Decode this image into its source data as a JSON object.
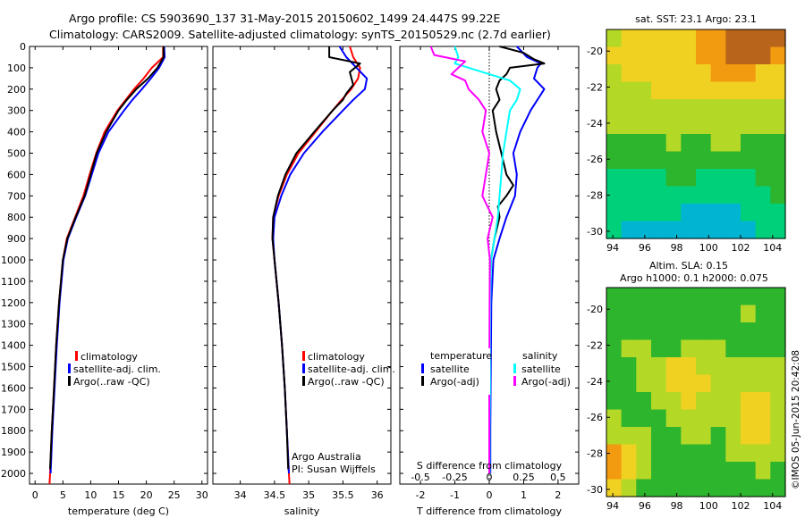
{
  "title_line1": "Argo profile: CS 5903690_137 31-May-2015 20150602_1499 24.447S 99.22E",
  "title_line2": "Climatology: CARS2009. Satellite-adjusted climatology: synTS_20150529.nc (2.7d earlier)",
  "credit_line1": "Argo Australia",
  "credit_line2": "PI: Susan Wijffels",
  "timestamp": "©IMOS 05-Jun-2015 20:42:08",
  "colors": {
    "climatology": "#ff0000",
    "satellite": "#0000ff",
    "argo": "#000000",
    "sal_satellite": "#00ffff",
    "sal_argo": "#ff00ff"
  },
  "chart_data": [
    {
      "type": "line",
      "xlabel": "temperature (deg C)",
      "xlim": [
        -1,
        31
      ],
      "ylim": [
        2050,
        0
      ],
      "xticks": [
        0,
        5,
        10,
        15,
        20,
        25,
        30
      ],
      "yticks": [
        0,
        100,
        200,
        300,
        400,
        500,
        600,
        700,
        800,
        900,
        1000,
        1100,
        1200,
        1300,
        1400,
        1500,
        1600,
        1700,
        1800,
        1900,
        2000
      ],
      "legend": [
        "climatology",
        "satellite-adj. clim.",
        "Argo(..raw -QC)"
      ],
      "series": [
        {
          "name": "climatology",
          "color": "#ff0000",
          "depth": [
            0,
            50,
            100,
            150,
            200,
            250,
            300,
            400,
            500,
            600,
            700,
            800,
            900,
            1000,
            1200,
            1400,
            1600,
            1800,
            2000,
            2050
          ],
          "values": [
            23.0,
            23.0,
            21.0,
            19.5,
            17.8,
            16.3,
            14.8,
            12.5,
            11.0,
            9.8,
            8.7,
            7.2,
            5.7,
            5.0,
            4.3,
            3.8,
            3.4,
            3.0,
            2.7,
            2.6
          ]
        },
        {
          "name": "satellite-adj. clim.",
          "color": "#0000ff",
          "depth": [
            0,
            50,
            100,
            150,
            200,
            250,
            300,
            400,
            500,
            600,
            700,
            800,
            900,
            1000,
            1200,
            1400,
            1600,
            1800,
            2000
          ],
          "values": [
            23.2,
            23.3,
            22.3,
            20.8,
            19.2,
            17.5,
            16.0,
            13.2,
            11.4,
            10.2,
            9.0,
            7.4,
            5.9,
            5.1,
            4.4,
            3.9,
            3.5,
            3.1,
            2.8
          ]
        },
        {
          "name": "Argo(..raw -QC)",
          "color": "#000000",
          "depth": [
            0,
            50,
            100,
            150,
            200,
            250,
            300,
            400,
            500,
            600,
            700,
            800,
            900,
            1000,
            1200,
            1400,
            1600,
            1800,
            1980
          ],
          "values": [
            23.1,
            23.1,
            22.0,
            20.3,
            18.2,
            16.5,
            15.0,
            12.8,
            11.1,
            10.0,
            8.9,
            7.3,
            5.8,
            5.0,
            4.3,
            3.8,
            3.4,
            3.0,
            2.7
          ]
        }
      ]
    },
    {
      "type": "line",
      "xlabel": "salinity",
      "xlim": [
        33.6,
        36.2
      ],
      "ylim": [
        2050,
        0
      ],
      "xticks": [
        34,
        34.5,
        35,
        35.5,
        36
      ],
      "legend": [
        "climatology",
        "satellite-adj. clim.",
        "Argo(..raw -QC)"
      ],
      "series": [
        {
          "name": "climatology",
          "color": "#ff0000",
          "depth": [
            0,
            50,
            100,
            150,
            200,
            250,
            300,
            400,
            500,
            600,
            700,
            800,
            900,
            1000,
            1200,
            1400,
            1600,
            1800,
            2000,
            2050
          ],
          "values": [
            35.6,
            35.65,
            35.75,
            35.72,
            35.62,
            35.48,
            35.35,
            35.1,
            34.85,
            34.68,
            34.56,
            34.48,
            34.47,
            34.5,
            34.56,
            34.61,
            34.65,
            34.68,
            34.71,
            34.72
          ]
        },
        {
          "name": "satellite-adj. clim.",
          "color": "#0000ff",
          "depth": [
            0,
            50,
            100,
            150,
            200,
            250,
            300,
            400,
            500,
            600,
            700,
            800,
            900,
            1000,
            1200,
            1400,
            1600,
            1800,
            2000
          ],
          "values": [
            35.45,
            35.55,
            35.7,
            35.85,
            35.82,
            35.65,
            35.5,
            35.2,
            34.93,
            34.73,
            34.6,
            34.5,
            34.48,
            34.5,
            34.56,
            34.61,
            34.65,
            34.68,
            34.71
          ]
        },
        {
          "name": "Argo(..raw -QC)",
          "color": "#000000",
          "depth": [
            0,
            50,
            80,
            120,
            180,
            220,
            250,
            300,
            400,
            500,
            600,
            700,
            800,
            900,
            1000,
            1200,
            1400,
            1600,
            1800,
            1980
          ],
          "values": [
            35.3,
            35.3,
            35.75,
            35.6,
            35.65,
            35.55,
            35.5,
            35.35,
            35.08,
            34.82,
            34.66,
            34.55,
            34.48,
            34.47,
            34.5,
            34.56,
            34.61,
            34.65,
            34.68,
            34.7
          ]
        }
      ]
    },
    {
      "type": "line",
      "xlabel": "T difference from climatology",
      "xlabel_top": "S difference from climatology",
      "xlim": [
        -2.6,
        2.6
      ],
      "ylim": [
        2050,
        0
      ],
      "xticks": [
        -2,
        -1,
        0,
        1,
        2
      ],
      "xticks_top": [
        "-0.5",
        "-0.25",
        "0",
        "0.25",
        "0.5"
      ],
      "legend_headers": [
        "temperature",
        "salinity"
      ],
      "legend": [
        "satellite",
        "Argo(-adj)",
        "satellite",
        "Argo(-adj)"
      ],
      "series": [
        {
          "name": "satellite",
          "color": "#0000ff",
          "depth": [
            0,
            50,
            80,
            100,
            150,
            200,
            250,
            300,
            400,
            500,
            600,
            700,
            800,
            900,
            1000,
            1200,
            1400,
            1600,
            1800,
            2000
          ],
          "values": [
            0.8,
            1.1,
            1.5,
            1.4,
            1.3,
            1.6,
            1.4,
            1.2,
            0.9,
            0.7,
            0.8,
            0.75,
            0.5,
            0.3,
            0.12,
            0.06,
            0.05,
            0.04,
            0.03,
            0.03
          ]
        },
        {
          "name": "Argo(-adj)",
          "color": "#000000",
          "depth": [
            0,
            30,
            60,
            80,
            100,
            130,
            160,
            200,
            250,
            300,
            400,
            500,
            600,
            650,
            700,
            750,
            800,
            900,
            1000,
            1200,
            1600,
            2000
          ],
          "values": [
            0.3,
            1.0,
            1.3,
            1.6,
            0.6,
            0.5,
            0.3,
            0.2,
            0.3,
            0.1,
            0.2,
            0.35,
            0.5,
            0.7,
            0.5,
            0.25,
            0.3,
            0.15,
            0.05,
            0.02,
            0.01,
            0.0
          ]
        },
        {
          "name": "satellite",
          "color": "#00ffff",
          "depth": [
            0,
            50,
            80,
            120,
            160,
            200,
            250,
            300,
            400,
            500,
            600,
            700,
            800,
            900,
            1000,
            1200,
            1400,
            1600,
            1800,
            2000
          ],
          "values": [
            -1.0,
            -0.9,
            -1.0,
            -0.2,
            0.6,
            0.9,
            0.8,
            0.6,
            0.5,
            0.4,
            0.35,
            0.3,
            0.25,
            0.15,
            0.05,
            0.03,
            0.02,
            0.02,
            0.01,
            0.01
          ]
        },
        {
          "name": "Argo(-adj)",
          "color": "#ff00ff",
          "depth": [
            0,
            40,
            70,
            100,
            130,
            160,
            200,
            250,
            300,
            400,
            500,
            600,
            700,
            800,
            900,
            1000,
            1200,
            1600,
            2000
          ],
          "values": [
            -1.7,
            -1.6,
            -0.7,
            -0.9,
            -1.1,
            -0.7,
            -0.6,
            -0.3,
            -0.1,
            -0.2,
            0.0,
            -0.1,
            -0.2,
            0.1,
            -0.05,
            0.02,
            0.01,
            0.0,
            0.0
          ]
        }
      ]
    },
    {
      "type": "heatmap",
      "title": "sat. SST: 23.1  Argo: 23.1",
      "xlim": [
        93.6,
        104.8
      ],
      "ylim": [
        -30.4,
        -18.8
      ],
      "xticks": [
        94,
        96,
        98,
        100,
        102,
        104
      ],
      "yticks": [
        -20,
        -22,
        -24,
        -26,
        -28,
        -30
      ],
      "palette": [
        "#1f78e8",
        "#00b4d2",
        "#00d07a",
        "#2db52d",
        "#b4d826",
        "#f0d020",
        "#f29a10",
        "#b8641a"
      ],
      "cols": 12,
      "rows": 12,
      "values": [
        [
          4.4,
          4.7,
          5.1,
          5.2,
          5.0,
          5.4,
          5.9,
          6.4,
          6.8,
          7.1,
          6.9,
          6.5
        ],
        [
          4.5,
          4.8,
          5.0,
          5.2,
          5.1,
          5.3,
          5.7,
          6.1,
          6.6,
          6.9,
          6.7,
          6.2
        ],
        [
          4.4,
          4.6,
          4.9,
          5.0,
          4.9,
          5.1,
          5.2,
          5.5,
          5.7,
          5.6,
          5.4,
          5.1
        ],
        [
          4.1,
          4.3,
          4.4,
          4.6,
          4.7,
          4.6,
          4.7,
          4.9,
          5.0,
          4.9,
          4.7,
          4.6
        ],
        [
          3.8,
          3.9,
          4.0,
          4.1,
          4.2,
          4.2,
          4.3,
          4.4,
          4.4,
          4.3,
          4.2,
          4.1
        ],
        [
          3.5,
          3.6,
          3.6,
          3.7,
          3.7,
          3.8,
          3.9,
          3.9,
          3.9,
          3.8,
          3.7,
          3.6
        ],
        [
          3.3,
          3.2,
          3.3,
          3.4,
          3.5,
          3.4,
          3.4,
          3.5,
          3.5,
          3.4,
          3.3,
          3.2
        ],
        [
          3.0,
          2.6,
          2.8,
          3.0,
          3.2,
          3.1,
          2.9,
          3.0,
          3.0,
          2.9,
          2.8,
          2.9
        ],
        [
          2.4,
          2.0,
          2.1,
          2.4,
          2.6,
          2.5,
          2.3,
          2.2,
          2.3,
          2.4,
          2.5,
          2.6
        ],
        [
          1.9,
          1.8,
          1.9,
          2.1,
          2.2,
          2.0,
          1.8,
          1.7,
          1.7,
          2.0,
          2.3,
          2.5
        ],
        [
          1.7,
          1.5,
          1.5,
          1.6,
          1.5,
          1.3,
          1.1,
          1.0,
          1.1,
          1.5,
          1.9,
          2.2
        ],
        [
          1.6,
          1.3,
          1.2,
          1.2,
          1.0,
          0.8,
          0.6,
          0.5,
          0.6,
          1.1,
          1.6,
          1.9
        ]
      ]
    },
    {
      "type": "heatmap",
      "title_line1": "Altim. SLA: 0.15",
      "title_line2": "Argo h1000: 0.1 h2000: 0.075",
      "xlim": [
        93.6,
        104.8
      ],
      "ylim": [
        -30.4,
        -18.8
      ],
      "xticks": [
        94,
        96,
        98,
        100,
        102,
        104
      ],
      "yticks": [
        -20,
        -22,
        -24,
        -26,
        -28,
        -30
      ],
      "palette": [
        "#1f78e8",
        "#00b4d2",
        "#00d07a",
        "#2db52d",
        "#b4d826",
        "#f0d020",
        "#f29a10",
        "#b8641a"
      ],
      "cols": 12,
      "rows": 12,
      "values": [
        [
          3.0,
          3.2,
          3.0,
          2.8,
          3.0,
          3.3,
          3.0,
          2.9,
          3.1,
          3.3,
          3.1,
          3.0
        ],
        [
          3.1,
          3.4,
          3.2,
          3.0,
          2.6,
          2.9,
          3.2,
          3.0,
          3.2,
          3.5,
          3.3,
          3.1
        ],
        [
          3.2,
          3.3,
          3.1,
          2.9,
          2.7,
          3.0,
          3.3,
          3.4,
          3.3,
          3.2,
          3.1,
          3.0
        ],
        [
          3.3,
          3.5,
          3.6,
          3.4,
          3.2,
          3.6,
          4.0,
          3.7,
          3.4,
          3.3,
          3.4,
          3.3
        ],
        [
          3.1,
          3.3,
          3.8,
          4.4,
          4.8,
          4.6,
          4.2,
          3.8,
          3.5,
          3.6,
          3.8,
          3.6
        ],
        [
          3.0,
          3.1,
          3.5,
          4.3,
          5.0,
          5.1,
          4.6,
          3.9,
          3.7,
          3.9,
          4.2,
          3.8
        ],
        [
          3.2,
          3.0,
          3.2,
          3.6,
          4.2,
          4.6,
          4.3,
          3.8,
          4.2,
          4.7,
          4.5,
          3.9
        ],
        [
          3.6,
          3.4,
          3.2,
          3.3,
          3.6,
          3.9,
          3.7,
          3.6,
          4.4,
          5.2,
          4.9,
          4.2
        ],
        [
          4.3,
          4.0,
          3.6,
          3.3,
          3.4,
          3.6,
          3.5,
          3.4,
          4.0,
          4.7,
          4.5,
          4.0
        ],
        [
          5.8,
          5.0,
          4.0,
          3.4,
          3.2,
          3.3,
          3.3,
          3.2,
          3.5,
          3.9,
          3.8,
          3.6
        ],
        [
          5.6,
          4.8,
          3.8,
          3.2,
          3.0,
          3.1,
          3.2,
          3.1,
          3.2,
          3.4,
          3.5,
          3.4
        ],
        [
          4.6,
          4.1,
          3.4,
          3.0,
          2.9,
          3.0,
          3.1,
          3.0,
          3.1,
          3.2,
          3.3,
          3.2
        ]
      ]
    }
  ]
}
